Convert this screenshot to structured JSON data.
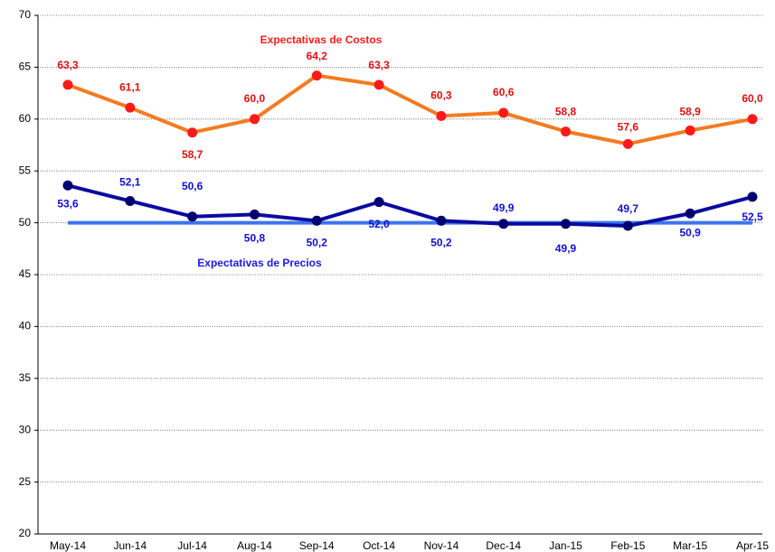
{
  "chart_data": {
    "type": "line",
    "categories": [
      "May-14",
      "Jun-14",
      "Jul-14",
      "Aug-14",
      "Sep-14",
      "Oct-14",
      "Nov-14",
      "Dec-14",
      "Jan-15",
      "Feb-15",
      "Mar-15",
      "Apr-15"
    ],
    "series": [
      {
        "name": "Expectativas de Costos",
        "color": "#f47b20",
        "marker_color": "#ff1a1a",
        "label_color": "#e01010",
        "values": [
          63.3,
          61.1,
          58.7,
          60.0,
          64.2,
          63.3,
          60.3,
          60.6,
          58.8,
          57.6,
          58.9,
          60.0
        ],
        "value_labels": [
          "63,3",
          "61,1",
          "58,7",
          "60,0",
          "64,2",
          "63,3",
          "60,3",
          "60,6",
          "58,8",
          "57,6",
          "58,9",
          "60,0"
        ]
      },
      {
        "name": "Expectativas de Precios",
        "color": "#0a0aa0",
        "marker_color": "#000070",
        "label_color": "#1010d0",
        "values": [
          53.6,
          52.1,
          50.6,
          50.8,
          50.2,
          52.0,
          50.2,
          49.9,
          49.9,
          49.7,
          50.9,
          52.5
        ],
        "value_labels": [
          "53,6",
          "52,1",
          "50,6",
          "50,8",
          "50,2",
          "52,0",
          "50,2",
          "49,9",
          "49,9",
          "49,7",
          "50,9",
          "52,5"
        ]
      }
    ],
    "reference_line": 50,
    "reference_color": "#3c74ec",
    "ylim": [
      20,
      70
    ],
    "yticks": [
      20,
      25,
      30,
      35,
      40,
      45,
      50,
      55,
      60,
      65,
      70
    ],
    "grid": true
  }
}
